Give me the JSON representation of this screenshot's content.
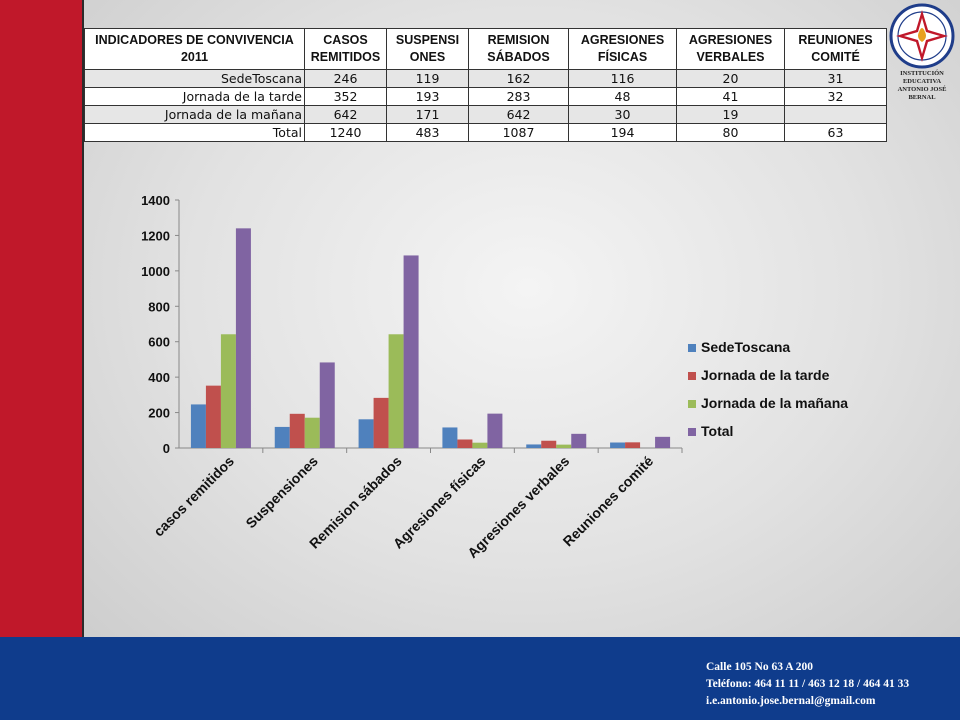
{
  "table": {
    "headers": [
      "INDICADORES DE CONVIVENCIA 2011",
      "CASOS REMITIDOS",
      "SUSPENSI ONES",
      "REMISION SÁBADOS",
      "AGRESIONES FÍSICAS",
      "AGRESIONES VERBALES",
      "REUNIONES COMITÉ"
    ],
    "rows": [
      [
        "SedeToscana",
        "246",
        "119",
        "162",
        "116",
        "20",
        "31"
      ],
      [
        "Jornada de la tarde",
        "352",
        "193",
        "283",
        "48",
        "41",
        "32"
      ],
      [
        "Jornada de la mañana",
        "642",
        "171",
        "642",
        "30",
        "19",
        ""
      ],
      [
        "Total",
        "1240",
        "483",
        "1087",
        "194",
        "80",
        "63"
      ]
    ]
  },
  "logo": {
    "line1": "INSTITUCIÓN EDUCATIVA",
    "line2": "ANTONIO JOSÉ BERNAL"
  },
  "footer": {
    "address": "Calle 105 No 63 A 200",
    "phone": "Teléfono: 464 11 11 / 463 12 18 / 464 41 33",
    "email": "i.e.antonio.jose.bernal@gmail.com"
  },
  "colors": {
    "red_bar": "#c0182a",
    "footer_blue": "#0f3c8c",
    "series": [
      "#4f81bd",
      "#c0504d",
      "#9bbb59",
      "#8064a2"
    ]
  },
  "chart_data": {
    "type": "bar",
    "categories": [
      "casos remitidos",
      "Suspensiones",
      "Remision sábados",
      "Agresiones físicas",
      "Agresiones verbales",
      "Reuniones comité"
    ],
    "series": [
      {
        "name": "SedeToscana",
        "values": [
          246,
          119,
          162,
          116,
          20,
          31
        ]
      },
      {
        "name": "Jornada de la tarde",
        "values": [
          352,
          193,
          283,
          48,
          41,
          32
        ]
      },
      {
        "name": "Jornada de la mañana",
        "values": [
          642,
          171,
          642,
          30,
          19,
          0
        ]
      },
      {
        "name": "Total",
        "values": [
          1240,
          483,
          1087,
          194,
          80,
          63
        ]
      }
    ],
    "yticks": [
      "0",
      "200",
      "400",
      "600",
      "800",
      "1000",
      "1200",
      "1400"
    ],
    "ylim": [
      0,
      1400
    ],
    "grid": false,
    "legend_position": "right"
  }
}
